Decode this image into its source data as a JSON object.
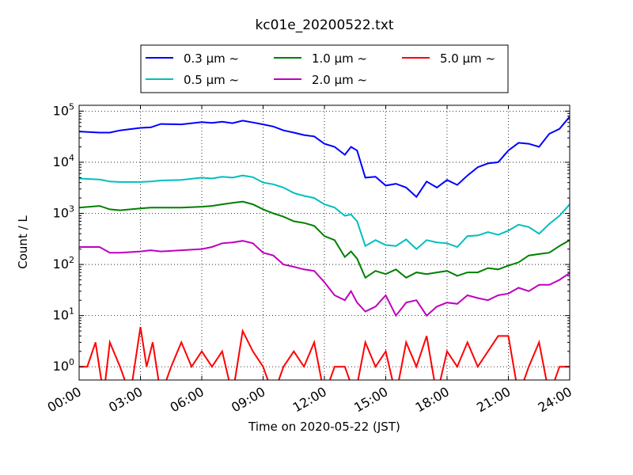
{
  "chart_data": {
    "type": "line",
    "title": "kc01e_20200522.txt",
    "xlabel": "Time on 2020-05-22 (JST)",
    "ylabel": "Count / L",
    "x_unit": "hours",
    "xlim": [
      0,
      24
    ],
    "ylim": [
      0.55,
      130000
    ],
    "y_scale": "log",
    "grid": true,
    "legend_position": "top-center",
    "x_ticks": [
      "00:00",
      "03:00",
      "06:00",
      "09:00",
      "12:00",
      "15:00",
      "18:00",
      "21:00",
      "24:00"
    ],
    "y_ticks": [
      "10^0",
      "10^1",
      "10^2",
      "10^3",
      "10^4",
      "10^5"
    ],
    "series": [
      {
        "name": "0.3 μm ~",
        "color": "#0000ff",
        "points": [
          [
            0,
            40000
          ],
          [
            1,
            38000
          ],
          [
            1.5,
            38000
          ],
          [
            2,
            42000
          ],
          [
            3,
            47000
          ],
          [
            3.5,
            48000
          ],
          [
            4,
            56000
          ],
          [
            5,
            55000
          ],
          [
            6,
            61000
          ],
          [
            6.5,
            59000
          ],
          [
            7,
            62000
          ],
          [
            7.5,
            58000
          ],
          [
            8,
            65000
          ],
          [
            8.5,
            60000
          ],
          [
            9,
            55000
          ],
          [
            9.5,
            50000
          ],
          [
            10,
            42000
          ],
          [
            10.5,
            38000
          ],
          [
            11,
            34000
          ],
          [
            11.5,
            32000
          ],
          [
            12,
            23000
          ],
          [
            12.5,
            20000
          ],
          [
            13,
            14000
          ],
          [
            13.3,
            20000
          ],
          [
            13.6,
            17000
          ],
          [
            14,
            5000
          ],
          [
            14.5,
            5200
          ],
          [
            15,
            3500
          ],
          [
            15.5,
            3800
          ],
          [
            16,
            3200
          ],
          [
            16.5,
            2100
          ],
          [
            17,
            4200
          ],
          [
            17.5,
            3200
          ],
          [
            18,
            4500
          ],
          [
            18.5,
            3600
          ],
          [
            19,
            5500
          ],
          [
            19.5,
            8000
          ],
          [
            20,
            9500
          ],
          [
            20.5,
            10000
          ],
          [
            21,
            17000
          ],
          [
            21.5,
            24000
          ],
          [
            22,
            23000
          ],
          [
            22.5,
            20000
          ],
          [
            23,
            36000
          ],
          [
            23.5,
            45000
          ],
          [
            24,
            78000
          ]
        ]
      },
      {
        "name": "0.5 μm ~",
        "color": "#00bfbf",
        "points": [
          [
            0,
            4800
          ],
          [
            1,
            4600
          ],
          [
            1.5,
            4200
          ],
          [
            2,
            4100
          ],
          [
            3,
            4100
          ],
          [
            3.5,
            4200
          ],
          [
            4,
            4400
          ],
          [
            5,
            4500
          ],
          [
            6,
            5000
          ],
          [
            6.5,
            4800
          ],
          [
            7,
            5200
          ],
          [
            7.5,
            5000
          ],
          [
            8,
            5500
          ],
          [
            8.5,
            5100
          ],
          [
            9,
            4000
          ],
          [
            9.5,
            3700
          ],
          [
            10,
            3200
          ],
          [
            10.5,
            2500
          ],
          [
            11,
            2200
          ],
          [
            11.5,
            2000
          ],
          [
            12,
            1500
          ],
          [
            12.5,
            1300
          ],
          [
            13,
            900
          ],
          [
            13.3,
            950
          ],
          [
            13.6,
            700
          ],
          [
            14,
            230
          ],
          [
            14.5,
            300
          ],
          [
            15,
            240
          ],
          [
            15.5,
            230
          ],
          [
            16,
            310
          ],
          [
            16.5,
            200
          ],
          [
            17,
            300
          ],
          [
            17.5,
            270
          ],
          [
            18,
            260
          ],
          [
            18.5,
            220
          ],
          [
            19,
            360
          ],
          [
            19.5,
            370
          ],
          [
            20,
            430
          ],
          [
            20.5,
            380
          ],
          [
            21,
            460
          ],
          [
            21.5,
            600
          ],
          [
            22,
            540
          ],
          [
            22.5,
            400
          ],
          [
            23,
            620
          ],
          [
            23.5,
            900
          ],
          [
            24,
            1500
          ]
        ]
      },
      {
        "name": "1.0 μm ~",
        "color": "#008000",
        "points": [
          [
            0,
            1300
          ],
          [
            1,
            1400
          ],
          [
            1.5,
            1200
          ],
          [
            2,
            1150
          ],
          [
            3,
            1250
          ],
          [
            3.5,
            1300
          ],
          [
            4,
            1300
          ],
          [
            5,
            1300
          ],
          [
            6,
            1350
          ],
          [
            6.5,
            1400
          ],
          [
            7,
            1500
          ],
          [
            7.5,
            1600
          ],
          [
            8,
            1700
          ],
          [
            8.5,
            1500
          ],
          [
            9,
            1200
          ],
          [
            9.5,
            1000
          ],
          [
            10,
            860
          ],
          [
            10.5,
            700
          ],
          [
            11,
            650
          ],
          [
            11.5,
            570
          ],
          [
            12,
            360
          ],
          [
            12.5,
            300
          ],
          [
            13,
            140
          ],
          [
            13.3,
            180
          ],
          [
            13.6,
            130
          ],
          [
            14,
            55
          ],
          [
            14.5,
            75
          ],
          [
            15,
            65
          ],
          [
            15.5,
            80
          ],
          [
            16,
            55
          ],
          [
            16.5,
            70
          ],
          [
            17,
            65
          ],
          [
            17.5,
            70
          ],
          [
            18,
            75
          ],
          [
            18.5,
            60
          ],
          [
            19,
            70
          ],
          [
            19.5,
            70
          ],
          [
            20,
            85
          ],
          [
            20.5,
            80
          ],
          [
            21,
            95
          ],
          [
            21.5,
            110
          ],
          [
            22,
            150
          ],
          [
            22.5,
            160
          ],
          [
            23,
            170
          ],
          [
            23.5,
            230
          ],
          [
            24,
            300
          ]
        ]
      },
      {
        "name": "2.0 μm ~",
        "color": "#bf00bf",
        "points": [
          [
            0,
            220
          ],
          [
            1,
            220
          ],
          [
            1.5,
            170
          ],
          [
            2,
            170
          ],
          [
            3,
            180
          ],
          [
            3.5,
            190
          ],
          [
            4,
            180
          ],
          [
            5,
            190
          ],
          [
            6,
            200
          ],
          [
            6.5,
            220
          ],
          [
            7,
            260
          ],
          [
            7.5,
            270
          ],
          [
            8,
            290
          ],
          [
            8.5,
            260
          ],
          [
            9,
            170
          ],
          [
            9.5,
            150
          ],
          [
            10,
            100
          ],
          [
            10.5,
            90
          ],
          [
            11,
            80
          ],
          [
            11.5,
            75
          ],
          [
            12,
            45
          ],
          [
            12.5,
            25
          ],
          [
            13,
            20
          ],
          [
            13.3,
            30
          ],
          [
            13.6,
            18
          ],
          [
            14,
            12
          ],
          [
            14.5,
            15
          ],
          [
            15,
            25
          ],
          [
            15.5,
            10
          ],
          [
            16,
            18
          ],
          [
            16.5,
            20
          ],
          [
            17,
            10
          ],
          [
            17.5,
            15
          ],
          [
            18,
            18
          ],
          [
            18.5,
            17
          ],
          [
            19,
            25
          ],
          [
            19.5,
            22
          ],
          [
            20,
            20
          ],
          [
            20.5,
            25
          ],
          [
            21,
            27
          ],
          [
            21.5,
            35
          ],
          [
            22,
            30
          ],
          [
            22.5,
            40
          ],
          [
            23,
            40
          ],
          [
            23.5,
            50
          ],
          [
            24,
            68
          ]
        ]
      },
      {
        "name": "5.0 μm ~",
        "color": "#ff0000",
        "points": [
          [
            0,
            1
          ],
          [
            0.4,
            1
          ],
          [
            0.8,
            3
          ],
          [
            1.2,
            0
          ],
          [
            1.5,
            3
          ],
          [
            2,
            1
          ],
          [
            2.5,
            0
          ],
          [
            3,
            6
          ],
          [
            3.3,
            1
          ],
          [
            3.6,
            3
          ],
          [
            4,
            0
          ],
          [
            4.5,
            1
          ],
          [
            5,
            3
          ],
          [
            5.5,
            1
          ],
          [
            6,
            2
          ],
          [
            6.5,
            1
          ],
          [
            7,
            2
          ],
          [
            7.5,
            0
          ],
          [
            8,
            5
          ],
          [
            8.5,
            2
          ],
          [
            9,
            1
          ],
          [
            9.5,
            0
          ],
          [
            10,
            1
          ],
          [
            10.5,
            2
          ],
          [
            11,
            1
          ],
          [
            11.5,
            3
          ],
          [
            12,
            0
          ],
          [
            12.5,
            1
          ],
          [
            13,
            1
          ],
          [
            13.5,
            0
          ],
          [
            14,
            3
          ],
          [
            14.5,
            1
          ],
          [
            15,
            2
          ],
          [
            15.5,
            0
          ],
          [
            16,
            3
          ],
          [
            16.5,
            1
          ],
          [
            17,
            4
          ],
          [
            17.5,
            0
          ],
          [
            18,
            2
          ],
          [
            18.5,
            1
          ],
          [
            19,
            3
          ],
          [
            19.5,
            1
          ],
          [
            20,
            2
          ],
          [
            20.5,
            4
          ],
          [
            21,
            4
          ],
          [
            21.5,
            0
          ],
          [
            22,
            1
          ],
          [
            22.5,
            3
          ],
          [
            23,
            0
          ],
          [
            23.5,
            1
          ],
          [
            24,
            1
          ]
        ]
      }
    ]
  }
}
